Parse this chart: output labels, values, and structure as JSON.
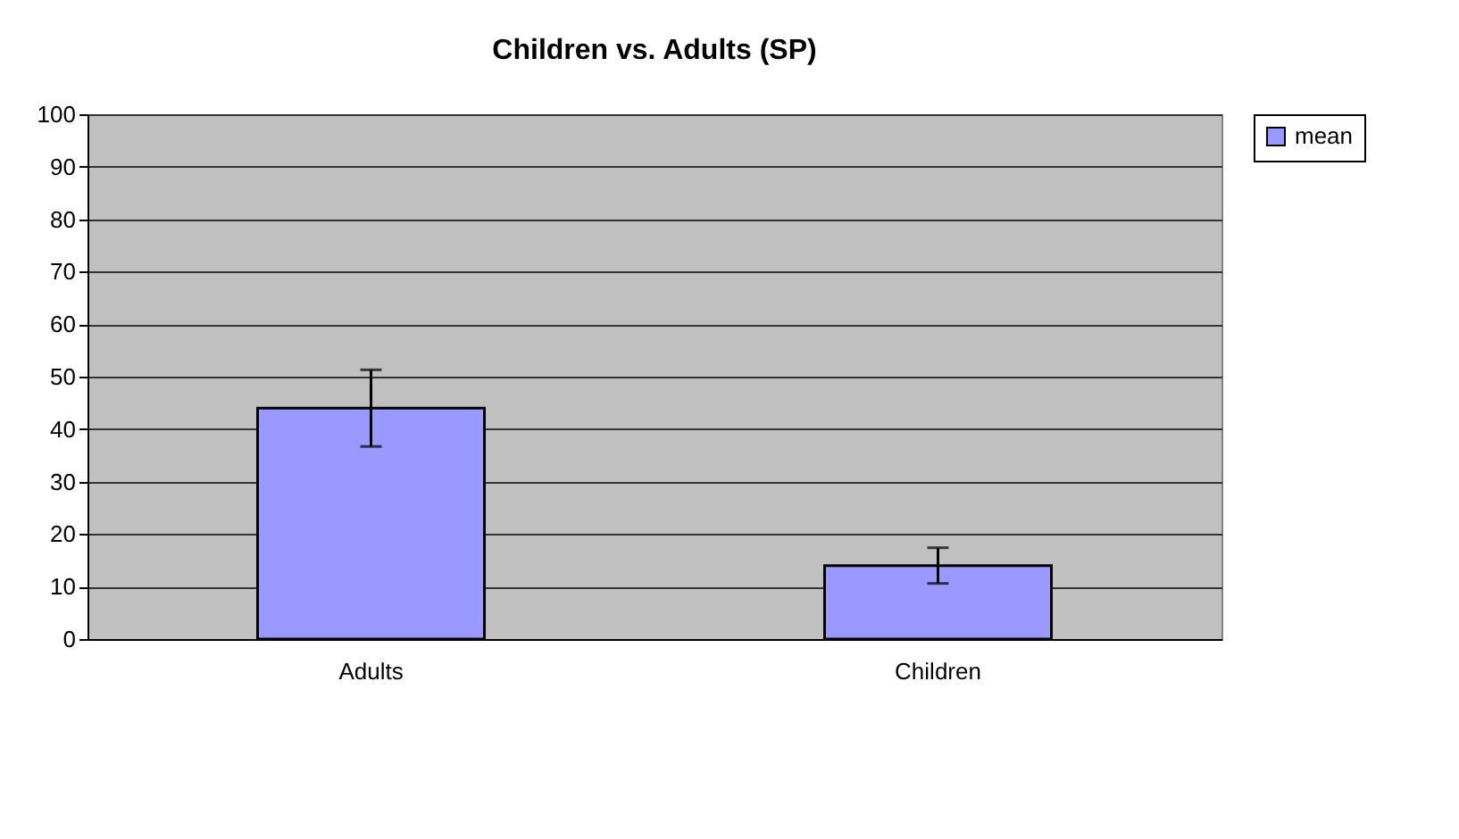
{
  "chart_data": {
    "type": "bar",
    "title": "Children vs. Adults (SP)",
    "categories": [
      "Adults",
      "Children"
    ],
    "series": [
      {
        "name": "mean",
        "color": "#9999ff",
        "values": [
          44,
          14
        ],
        "errors": [
          7.3,
          3.4
        ]
      }
    ],
    "ylim": [
      0,
      100
    ],
    "yticks": [
      0,
      10,
      20,
      30,
      40,
      50,
      60,
      70,
      80,
      90,
      100
    ],
    "grid": "y",
    "legend": "right"
  }
}
